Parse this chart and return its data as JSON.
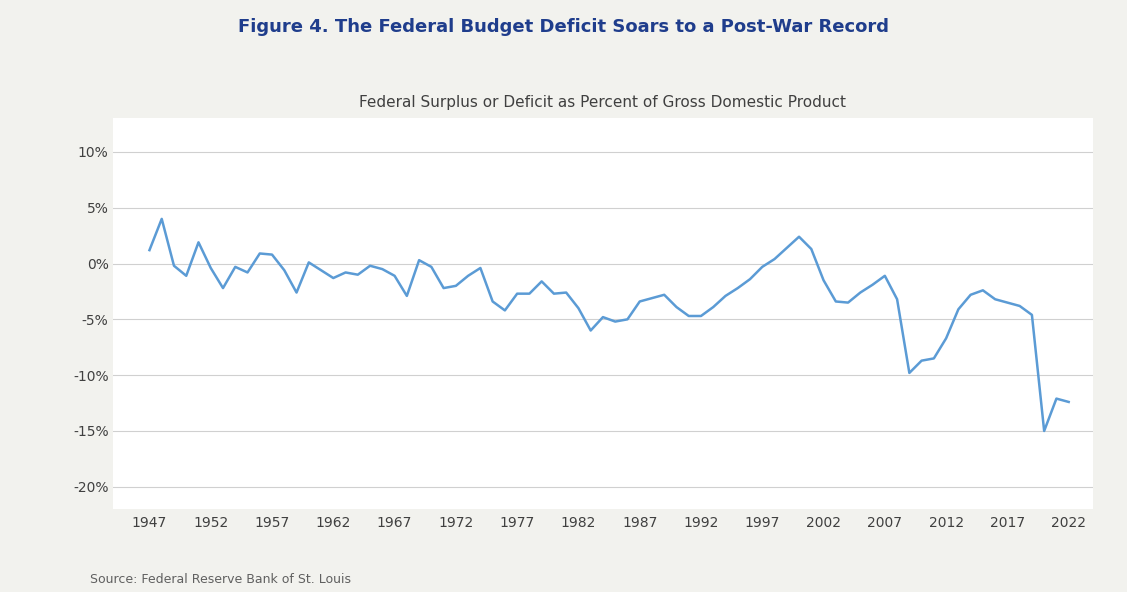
{
  "title": "Figure 4. The Federal Budget Deficit Soars to a Post-War Record",
  "subtitle": "Federal Surplus or Deficit as Percent of Gross Domestic Product",
  "source": "Source: Federal Reserve Bank of St. Louis",
  "line_color": "#5b9bd5",
  "background_color": "#f2f2ee",
  "plot_background_color": "#ffffff",
  "title_color": "#1f3d8c",
  "subtitle_color": "#404040",
  "years": [
    1947,
    1948,
    1949,
    1950,
    1951,
    1952,
    1953,
    1954,
    1955,
    1956,
    1957,
    1958,
    1959,
    1960,
    1961,
    1962,
    1963,
    1964,
    1965,
    1966,
    1967,
    1968,
    1969,
    1970,
    1971,
    1972,
    1973,
    1974,
    1975,
    1976,
    1977,
    1978,
    1979,
    1980,
    1981,
    1982,
    1983,
    1984,
    1985,
    1986,
    1987,
    1988,
    1989,
    1990,
    1991,
    1992,
    1993,
    1994,
    1995,
    1996,
    1997,
    1998,
    1999,
    2000,
    2001,
    2002,
    2003,
    2004,
    2005,
    2006,
    2007,
    2008,
    2009,
    2010,
    2011,
    2012,
    2013,
    2014,
    2015,
    2016,
    2017,
    2018,
    2019,
    2020,
    2021,
    2022
  ],
  "values": [
    1.2,
    4.0,
    -0.2,
    -1.1,
    1.9,
    -0.4,
    -2.2,
    -0.3,
    -0.8,
    0.9,
    0.8,
    -0.6,
    -2.6,
    0.1,
    -0.6,
    -1.3,
    -0.8,
    -1.0,
    -0.2,
    -0.5,
    -1.1,
    -2.9,
    0.3,
    -0.3,
    -2.2,
    -2.0,
    -1.1,
    -0.4,
    -3.4,
    -4.2,
    -2.7,
    -2.7,
    -1.6,
    -2.7,
    -2.6,
    -4.0,
    -6.0,
    -4.8,
    -5.2,
    -5.0,
    -3.4,
    -3.1,
    -2.8,
    -3.9,
    -4.7,
    -4.7,
    -3.9,
    -2.9,
    -2.2,
    -1.4,
    -0.3,
    0.4,
    1.4,
    2.4,
    1.3,
    -1.5,
    -3.4,
    -3.5,
    -2.6,
    -1.9,
    -1.1,
    -3.2,
    -9.8,
    -8.7,
    -8.5,
    -6.7,
    -4.1,
    -2.8,
    -2.4,
    -3.2,
    -3.5,
    -3.8,
    -4.6,
    -15.0,
    -12.1,
    -12.4
  ],
  "yticks": [
    -20,
    -15,
    -10,
    -5,
    0,
    5,
    10
  ],
  "xticks": [
    1947,
    1952,
    1957,
    1962,
    1967,
    1972,
    1977,
    1982,
    1987,
    1992,
    1997,
    2002,
    2007,
    2012,
    2017,
    2022
  ],
  "ylim": [
    -22,
    13
  ],
  "xlim": [
    1944,
    2024
  ]
}
